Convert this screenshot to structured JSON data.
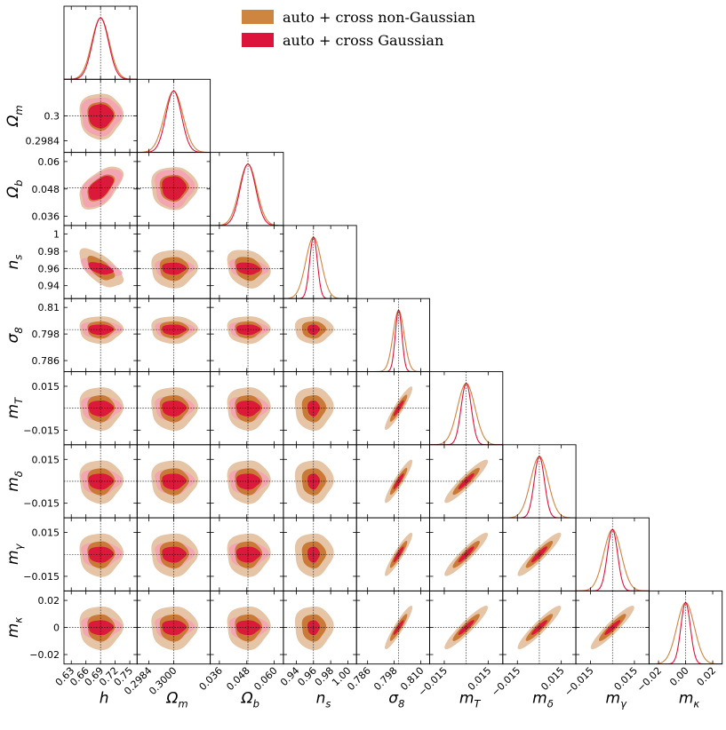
{
  "chart_data": {
    "type": "corner",
    "title": "",
    "parameters": [
      {
        "name": "h",
        "label": "h",
        "fiducial": 0.69,
        "ticks": [
          "0.63",
          "0.66",
          "0.69",
          "0.72",
          "0.75"
        ],
        "tick_values": [
          0.63,
          0.66,
          0.69,
          0.72,
          0.75
        ],
        "range": [
          0.615,
          0.765
        ],
        "sigma_nongauss": 0.018,
        "sigma_gauss": 0.0165
      },
      {
        "name": "Omega_m",
        "label": "Ωm",
        "fiducial": 0.3,
        "ticks": [
          "0.2984",
          "0.3000"
        ],
        "row_ticks": [
          "0.3",
          "0.2984"
        ],
        "tick_values": [
          0.2984,
          0.3
        ],
        "range": [
          0.29765,
          0.30235
        ],
        "sigma_nongauss": 0.0006,
        "sigma_gauss": 0.0005
      },
      {
        "name": "Omega_b",
        "label": "Ωb",
        "fiducial": 0.0485,
        "ticks": [
          "0.036",
          "0.048",
          "0.060"
        ],
        "row_ticks": [
          "0.06",
          "0.048",
          "0.036"
        ],
        "tick_values": [
          0.036,
          0.048,
          0.06
        ],
        "range": [
          0.032,
          0.064
        ],
        "sigma_nongauss": 0.0038,
        "sigma_gauss": 0.0034
      },
      {
        "name": "n_s",
        "label": "ns",
        "fiducial": 0.96,
        "ticks": [
          "0.94",
          "0.96",
          "0.98",
          "1.00"
        ],
        "row_ticks": [
          "1",
          "0.98",
          "0.96",
          "0.94"
        ],
        "tick_values": [
          0.94,
          0.96,
          0.98,
          1.0
        ],
        "range": [
          0.925,
          1.01
        ],
        "sigma_nongauss": 0.009,
        "sigma_gauss": 0.0045
      },
      {
        "name": "sigma_8",
        "label": "σ8",
        "fiducial": 0.8,
        "ticks": [
          "0.786",
          "0.798",
          "0.810"
        ],
        "row_ticks": [
          "0.81",
          "0.798",
          "0.786"
        ],
        "tick_values": [
          0.786,
          0.798,
          0.81
        ],
        "range": [
          0.781,
          0.814
        ],
        "sigma_nongauss": 0.0025,
        "sigma_gauss": 0.0015
      },
      {
        "name": "m_T",
        "label": "mT",
        "fiducial": 0.0,
        "ticks": [
          "−0.015",
          "0.015"
        ],
        "row_ticks": [
          "0.015",
          "−0.015"
        ],
        "tick_values": [
          -0.015,
          0.015
        ],
        "range": [
          -0.025,
          0.025
        ],
        "sigma_nongauss": 0.006,
        "sigma_gauss": 0.0035
      },
      {
        "name": "m_delta",
        "label": "mδ",
        "fiducial": 0.0,
        "ticks": [
          "−0.015",
          "0.015"
        ],
        "row_ticks": [
          "0.015",
          "−0.015"
        ],
        "tick_values": [
          -0.015,
          0.015
        ],
        "range": [
          -0.025,
          0.025
        ],
        "sigma_nongauss": 0.006,
        "sigma_gauss": 0.0035
      },
      {
        "name": "m_gamma",
        "label": "mγ",
        "fiducial": 0.0,
        "ticks": [
          "−0.015",
          "0.015"
        ],
        "row_ticks": [
          "0.015",
          "−0.015"
        ],
        "tick_values": [
          -0.015,
          0.015
        ],
        "range": [
          -0.025,
          0.025
        ],
        "sigma_nongauss": 0.006,
        "sigma_gauss": 0.0035
      },
      {
        "name": "m_kappa",
        "label": "mκ",
        "fiducial": 0.0,
        "ticks": [
          "−0.02",
          "0.00",
          "0.02"
        ],
        "row_ticks": [
          "0.02",
          "0",
          "−0.02"
        ],
        "tick_values": [
          -0.02,
          0.0,
          0.02
        ],
        "range": [
          -0.027,
          0.027
        ],
        "sigma_nongauss": 0.0065,
        "sigma_gauss": 0.0035
      }
    ],
    "correlations_strong": 0.93,
    "series": [
      {
        "name": "auto + cross non-Gaussian",
        "color": "#cd853f",
        "inner_color": "#c87a36",
        "outer_color": "#e6c4a6"
      },
      {
        "name": "auto + cross Gaussian",
        "color": "#dc143c",
        "inner_color": "#dc143c",
        "outer_color": "#f4a0b4"
      }
    ],
    "legend_position": "top-right"
  }
}
